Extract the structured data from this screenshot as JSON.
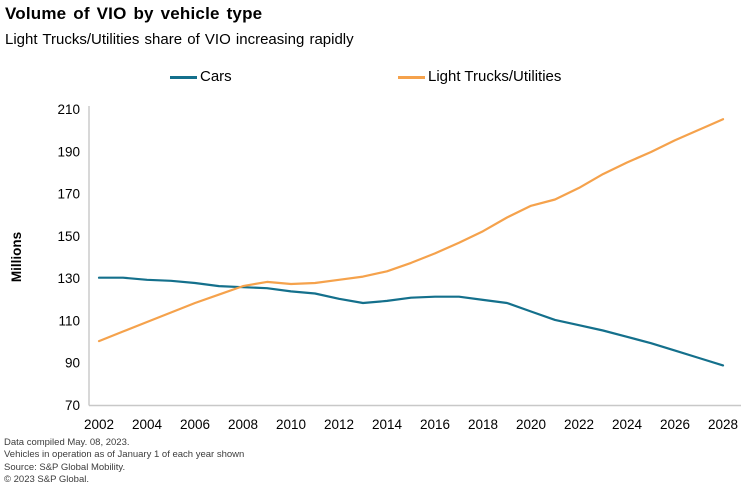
{
  "title": "Volume of VIO by vehicle type",
  "subtitle": "Light Trucks/Utilities share of VIO increasing rapidly",
  "legend": [
    {
      "label": "Cars",
      "color": "#14708C"
    },
    {
      "label": "Light Trucks/Utilities",
      "color": "#F5A24C"
    }
  ],
  "footer": [
    "Data compiled May. 08, 2023.",
    "Vehicles in operation as of January 1 of each year shown",
    "Source: S&P Global Mobility.",
    "© 2023 S&P Global."
  ],
  "chart_data": {
    "type": "line",
    "title": "Volume of VIO by vehicle type",
    "subtitle": "Light Trucks/Utilities share of VIO increasing rapidly",
    "ylabel": "Millions",
    "xlabel": "",
    "ylim": [
      70,
      210
    ],
    "yticks": [
      70,
      90,
      110,
      130,
      150,
      170,
      190,
      210
    ],
    "xticks": [
      2002,
      2004,
      2006,
      2008,
      2010,
      2012,
      2014,
      2016,
      2018,
      2020,
      2022,
      2024,
      2026,
      2028
    ],
    "x": [
      2002,
      2003,
      2004,
      2005,
      2006,
      2007,
      2008,
      2009,
      2010,
      2011,
      2012,
      2013,
      2014,
      2015,
      2016,
      2017,
      2018,
      2019,
      2020,
      2021,
      2022,
      2023,
      2024,
      2025,
      2026,
      2027,
      2028
    ],
    "series": [
      {
        "name": "Cars",
        "color": "#14708C",
        "values": [
          130.5,
          130.5,
          129.5,
          129,
          128,
          126.5,
          126,
          125.5,
          124,
          123,
          120.5,
          118.5,
          119.5,
          121,
          121.5,
          121.5,
          120,
          118.5,
          114.5,
          110.5,
          108,
          105.5,
          102.5,
          99.5,
          96,
          92.5,
          89
        ]
      },
      {
        "name": "Light Trucks/Utilities",
        "color": "#F5A24C",
        "values": [
          100.5,
          105,
          109.5,
          114,
          118.5,
          122.5,
          126.5,
          128.5,
          127.5,
          128,
          129.5,
          131,
          133.5,
          137.5,
          142,
          147,
          152.5,
          159,
          164.5,
          167.5,
          173,
          179.5,
          185,
          190,
          195.5,
          200.5,
          205.5
        ]
      }
    ],
    "grid": false,
    "legend_position": "top",
    "axis_color": "#C8C8C8",
    "tick_label_color": "#000000"
  }
}
